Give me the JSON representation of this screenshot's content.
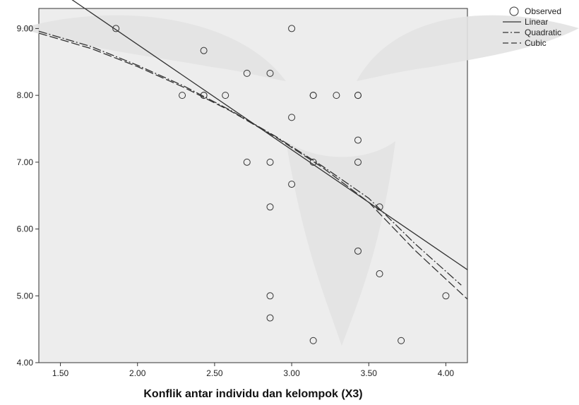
{
  "chart_data": {
    "type": "scatter",
    "xlabel": "Konflik antar individu dan kelompok (X3)",
    "ylabel": "",
    "xlim": [
      1.36,
      4.14
    ],
    "ylim": [
      4.0,
      9.3
    ],
    "x_ticks": [
      "1.50",
      "2.00",
      "2.50",
      "3.00",
      "3.50",
      "4.00"
    ],
    "y_ticks": [
      "4.00",
      "5.00",
      "6.00",
      "7.00",
      "8.00",
      "9.00"
    ],
    "grid": false,
    "legend_position": "top-right",
    "legend": [
      "Observed",
      "Linear",
      "Quadratic",
      "Cubic"
    ],
    "series": [
      {
        "name": "Observed",
        "kind": "points",
        "x": [
          1.86,
          2.29,
          2.43,
          2.43,
          2.43,
          2.57,
          2.71,
          2.71,
          2.86,
          2.86,
          2.86,
          2.86,
          2.86,
          3.0,
          3.0,
          3.0,
          3.14,
          3.14,
          3.14,
          3.14,
          3.29,
          3.43,
          3.43,
          3.43,
          3.43,
          3.43,
          3.57,
          3.57,
          3.71,
          4.0
        ],
        "y": [
          9.0,
          8.0,
          8.67,
          8.0,
          8.0,
          8.0,
          8.33,
          7.0,
          8.33,
          7.0,
          6.33,
          5.0,
          4.67,
          9.0,
          7.67,
          6.67,
          8.0,
          8.0,
          7.0,
          4.33,
          8.0,
          8.0,
          8.0,
          7.33,
          7.0,
          5.67,
          6.33,
          5.33,
          4.33,
          5.0
        ]
      },
      {
        "name": "Linear",
        "kind": "line",
        "style": "solid",
        "x": [
          1.36,
          4.14
        ],
        "y": [
          9.77,
          5.39
        ]
      },
      {
        "name": "Quadratic",
        "kind": "line",
        "style": "dash-dot",
        "x": [
          1.36,
          1.7,
          2.0,
          2.3,
          2.6,
          2.9,
          3.2,
          3.5,
          3.8,
          4.1
        ],
        "y": [
          8.96,
          8.73,
          8.45,
          8.14,
          7.78,
          7.38,
          6.94,
          6.46,
          5.78,
          5.16
        ]
      },
      {
        "name": "Cubic",
        "kind": "line",
        "style": "dashed",
        "x": [
          1.36,
          1.7,
          2.0,
          2.3,
          2.6,
          2.9,
          3.2,
          3.5,
          3.8,
          4.14
        ],
        "y": [
          8.93,
          8.7,
          8.43,
          8.12,
          7.77,
          7.37,
          6.92,
          6.4,
          5.68,
          4.95
        ]
      }
    ]
  }
}
